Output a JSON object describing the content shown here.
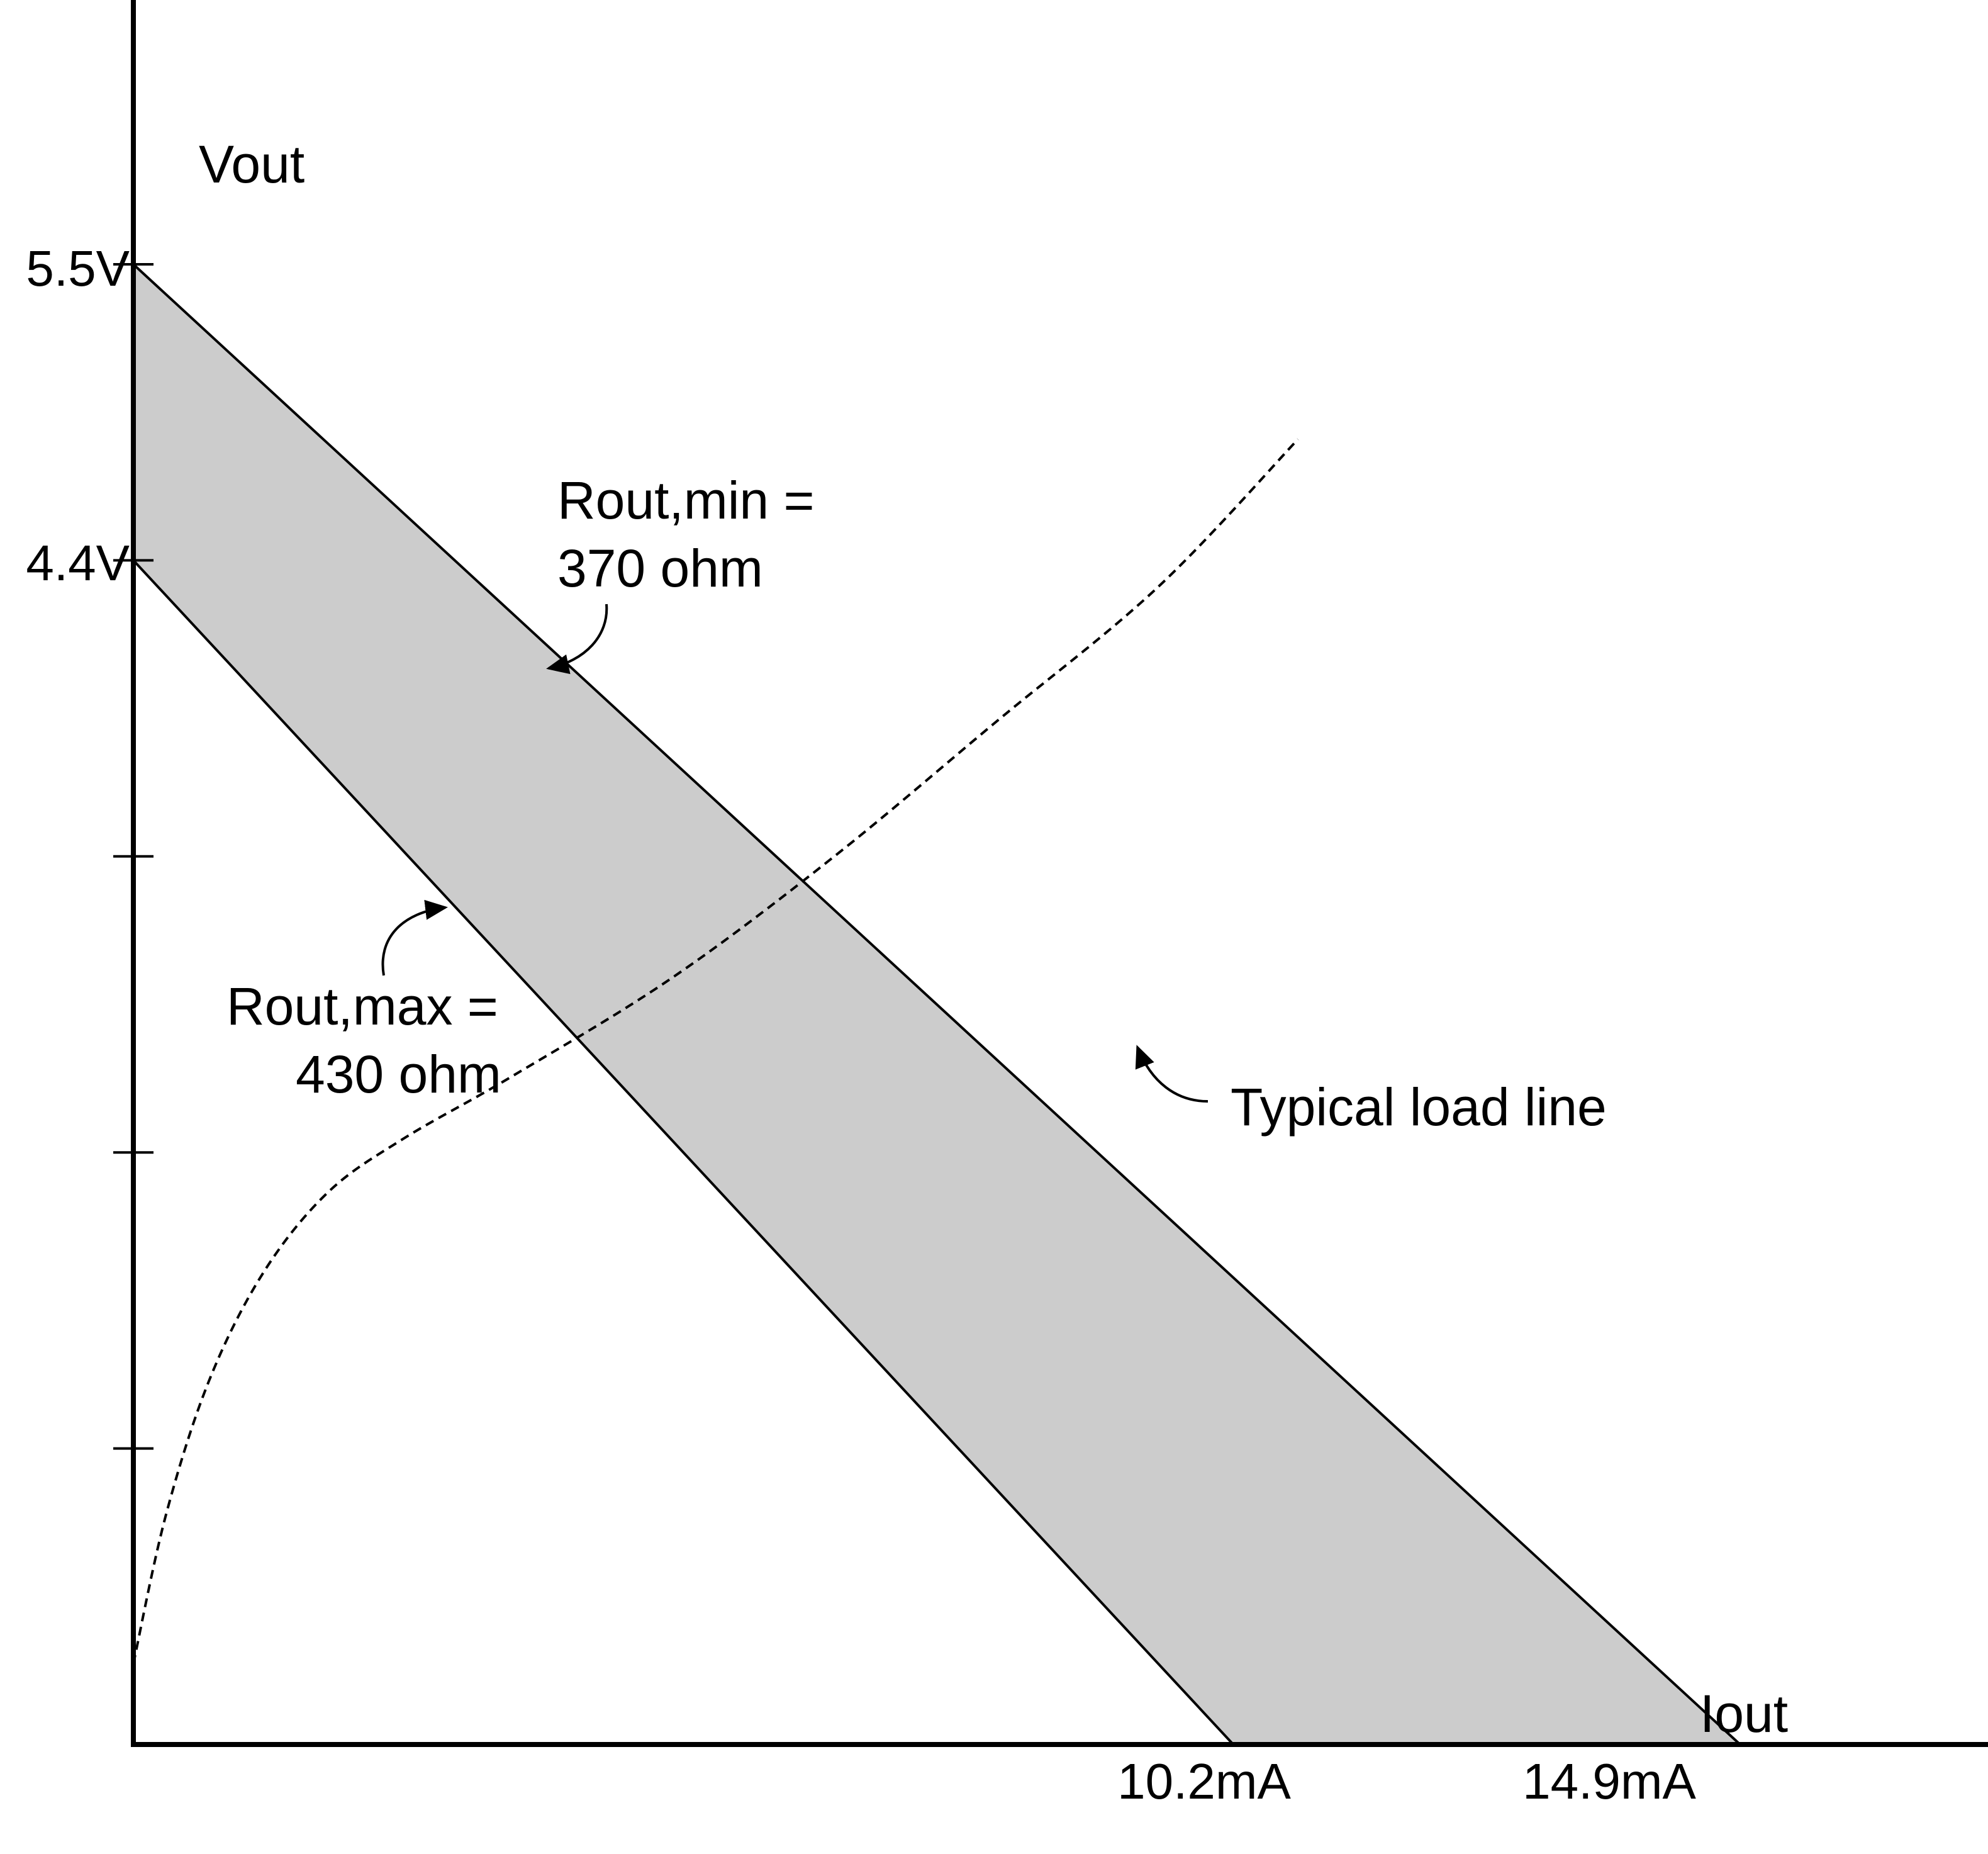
{
  "chart_data": {
    "type": "area",
    "xlabel": "Iout",
    "ylabel": "Vout",
    "xlim": [
      0,
      18.7
    ],
    "ylim": [
      0,
      6.6
    ],
    "y_ticks": [
      1.1,
      2.2,
      3.3,
      4.4,
      5.5
    ],
    "y_tick_labels": [
      {
        "value": 5.5,
        "text": "5.5V"
      },
      {
        "value": 4.4,
        "text": "4.4V"
      }
    ],
    "x_tick_labels": [
      {
        "value": 10.2,
        "text": "10.2mA"
      },
      {
        "value": 14.9,
        "text": "14.9mA"
      }
    ],
    "series": [
      {
        "name": "Rout,min = 370 ohm",
        "label_lines": [
          "Rout,min =",
          "370 ohm"
        ],
        "x": [
          0,
          14.9
        ],
        "y": [
          5.5,
          0
        ],
        "style": "solid"
      },
      {
        "name": "Rout,max = 430 ohm",
        "label_lines": [
          "Rout,max =",
          "430 ohm"
        ],
        "x": [
          0,
          10.2
        ],
        "y": [
          4.4,
          0
        ],
        "style": "solid"
      },
      {
        "name": "Typical load line",
        "label_lines": [
          "Typical load line"
        ],
        "style": "dashed",
        "x": [
          0,
          0.3,
          0.7,
          1.2,
          1.8,
          2.5,
          3.5,
          5,
          6.5,
          8,
          9.5,
          10.8
        ],
        "y": [
          0.3,
          0.85,
          1.35,
          1.75,
          2.05,
          2.25,
          2.48,
          2.85,
          3.3,
          3.8,
          4.3,
          4.85
        ]
      }
    ],
    "fill_between": {
      "upper": "Rout,min = 370 ohm",
      "lower": "Rout,max = 430 ohm",
      "color": "#cccccc"
    },
    "grid": false,
    "legend": "none",
    "colors": {
      "line": "#000000",
      "band": "#cccccc",
      "background": "#ffffff"
    }
  }
}
